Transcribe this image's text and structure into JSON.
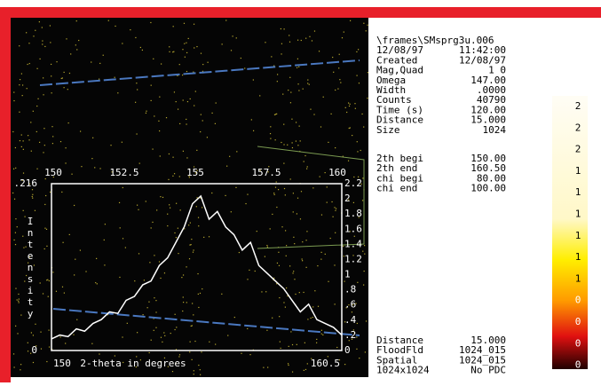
{
  "info": {
    "filename": "\\frames\\SMsprg3u.006",
    "fields": [
      {
        "label": "12/08/97",
        "value": "11:42:00"
      },
      {
        "label": "Created",
        "value": "12/08/97"
      },
      {
        "label": "Mag,Quad",
        "value": "1     0"
      },
      {
        "label": "Omega",
        "value": "147.00"
      },
      {
        "label": "Width",
        "value": ".0000"
      },
      {
        "label": "Counts",
        "value": "40790"
      },
      {
        "label": "Time (s)",
        "value": "120.00"
      },
      {
        "label": "Distance",
        "value": "15.000"
      },
      {
        "label": "Size",
        "value": "1024"
      }
    ],
    "range_fields": [
      {
        "label": "2th begi",
        "value": "150.00"
      },
      {
        "label": "2th end",
        "value": "160.50"
      },
      {
        "label": "chi begi",
        "value": "80.00"
      },
      {
        "label": "chi end",
        "value": "100.00"
      }
    ],
    "footer_fields": [
      {
        "label": "Distance",
        "value": "15.000"
      },
      {
        "label": "FloodFld",
        "value": "1024_015"
      },
      {
        "label": "Spatial",
        "value": "1024_015"
      },
      {
        "label": "1024x1024",
        "value": "No PDC"
      }
    ]
  },
  "plot": {
    "top_ticks": [
      "150",
      "152.5",
      "155",
      "157.5",
      "160"
    ],
    "right_ticks": [
      "2.2",
      "2",
      "1.8",
      "1.6",
      "1.4",
      "1.2",
      "1",
      ".8",
      ".6",
      ".4",
      ".2",
      "0"
    ],
    "xlabel": "2-theta in degrees",
    "ylabel": "Intensity",
    "xlim": [
      150,
      160.5
    ],
    "ylim": [
      0,
      {
        "value": 0.216,
        "label": ".216"
      }
    ],
    "x": [
      150,
      150.3,
      150.6,
      150.9,
      151.2,
      151.5,
      151.8,
      152.1,
      152.4,
      152.7,
      153,
      153.3,
      153.6,
      153.9,
      154.2,
      154.5,
      154.8,
      155.1,
      155.4,
      155.7,
      156,
      156.3,
      156.6,
      156.9,
      157.2,
      157.5,
      157.8,
      158.1,
      158.4,
      158.7,
      159,
      159.3,
      159.6,
      159.9,
      160.2,
      160.5
    ],
    "values": [
      0.015,
      0.02,
      0.018,
      0.028,
      0.025,
      0.035,
      0.04,
      0.05,
      0.048,
      0.065,
      0.07,
      0.085,
      0.09,
      0.11,
      0.12,
      0.14,
      0.16,
      0.19,
      0.2,
      0.17,
      0.18,
      0.16,
      0.15,
      0.13,
      0.14,
      0.11,
      0.1,
      0.09,
      0.08,
      0.065,
      0.05,
      0.06,
      0.04,
      0.035,
      0.03,
      0.02
    ]
  },
  "color_scale": {
    "labels": [
      "2",
      "2",
      "2",
      "1",
      "1",
      "1",
      "1",
      "1",
      "1",
      "0",
      "0",
      "0",
      "0"
    ]
  }
}
